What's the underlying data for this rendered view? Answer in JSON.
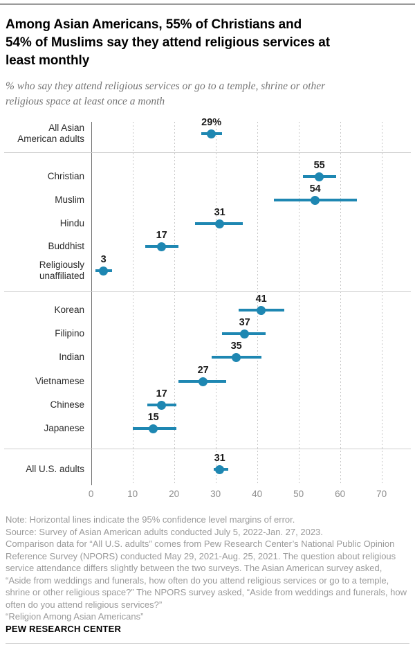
{
  "header": {
    "title_lines": [
      "Among Asian Americans, 55% of Christians and",
      "54% of Muslims say they attend religious services at",
      "least monthly"
    ],
    "subtitle_lines": [
      "% who say they attend religious services or go to a temple, shrine or other",
      "religious space at least once a month"
    ]
  },
  "chart_data": {
    "type": "scatter",
    "subtype": "dot-plot-with-95pct-confidence-error-bars",
    "xlabel": "",
    "ylabel": "",
    "xlim": [
      0,
      77
    ],
    "x_ticks": [
      0,
      10,
      20,
      30,
      40,
      50,
      60,
      70
    ],
    "grid": "vertical-dotted",
    "accent_color": "#1e87b2",
    "sections": [
      {
        "rows": [
          {
            "label": "All Asian\nAmerican adults",
            "value": 29,
            "value_label": "29%",
            "ci_low": 26.5,
            "ci_high": 31.5
          }
        ]
      },
      {
        "rows": [
          {
            "label": "Christian",
            "value": 55,
            "value_label": "55",
            "ci_low": 51,
            "ci_high": 59
          },
          {
            "label": "Muslim",
            "value": 54,
            "value_label": "54",
            "ci_low": 44,
            "ci_high": 64
          },
          {
            "label": "Hindu",
            "value": 31,
            "value_label": "31",
            "ci_low": 25,
            "ci_high": 36.5
          },
          {
            "label": "Buddhist",
            "value": 17,
            "value_label": "17",
            "ci_low": 13,
            "ci_high": 21
          },
          {
            "label": "Religiously\nunaffiliated",
            "value": 3,
            "value_label": "3",
            "ci_low": 1,
            "ci_high": 5
          }
        ]
      },
      {
        "rows": [
          {
            "label": "Korean",
            "value": 41,
            "value_label": "41",
            "ci_low": 35.5,
            "ci_high": 46.5
          },
          {
            "label": "Filipino",
            "value": 37,
            "value_label": "37",
            "ci_low": 31.5,
            "ci_high": 42
          },
          {
            "label": "Indian",
            "value": 35,
            "value_label": "35",
            "ci_low": 29,
            "ci_high": 41
          },
          {
            "label": "Vietnamese",
            "value": 27,
            "value_label": "27",
            "ci_low": 21,
            "ci_high": 32.5
          },
          {
            "label": "Chinese",
            "value": 17,
            "value_label": "17",
            "ci_low": 13.5,
            "ci_high": 20.5
          },
          {
            "label": "Japanese",
            "value": 15,
            "value_label": "15",
            "ci_low": 10,
            "ci_high": 20.5
          }
        ]
      },
      {
        "rows": [
          {
            "label": "All U.S. adults",
            "value": 31,
            "value_label": "31",
            "ci_low": 29.5,
            "ci_high": 33
          }
        ]
      }
    ]
  },
  "footer": {
    "note": "Note: Horizontal lines indicate the 95% confidence level margins of error.",
    "source": "Source: Survey of Asian American adults conducted July 5, 2022-Jan. 27, 2023.",
    "comparison": "Comparison data for “All U.S. adults” comes from Pew Research Center’s National Public Opinion Reference Survey (NPORS) conducted May 29, 2021-Aug. 25, 2021. The question about religious service attendance differs slightly between the two surveys. The Asian American survey asked, “Aside from weddings and funerals, how often do you attend religious services or go to a temple, shrine or other religious space?” The NPORS survey asked, “Aside from weddings and funerals, how often do you attend religious services?”",
    "report_title": "“Religion Among Asian Americans”",
    "brand": "PEW RESEARCH CENTER"
  }
}
